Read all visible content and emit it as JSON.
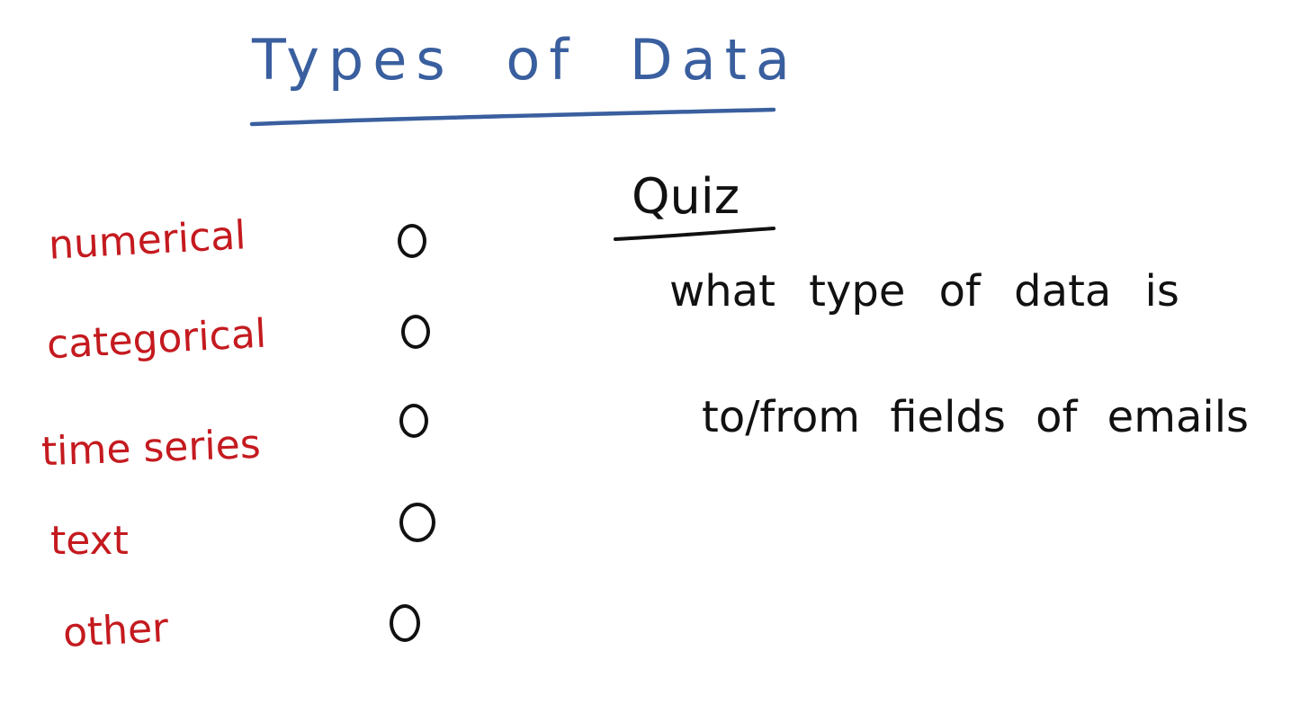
{
  "colors": {
    "title": "#3a5f9f",
    "option_text": "#c41a1f",
    "ink": "#111111",
    "background": "#ffffff"
  },
  "title": "Types of Data",
  "options": [
    {
      "label": "numerical"
    },
    {
      "label": "categorical"
    },
    {
      "label": "time series"
    },
    {
      "label": "text"
    },
    {
      "label": "other"
    }
  ],
  "quiz": {
    "heading": "Quiz",
    "question_line1": "what type of data is",
    "question_line2": "to/from fields of emails"
  }
}
